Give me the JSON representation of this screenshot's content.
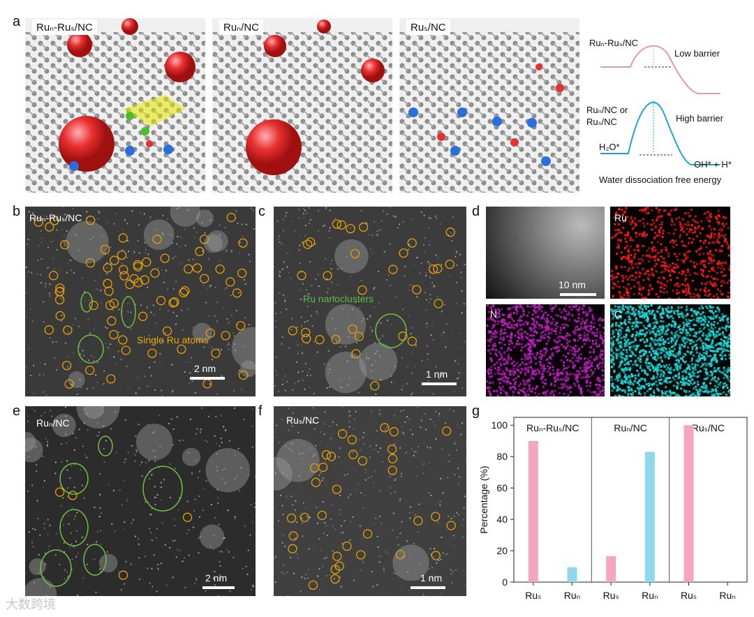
{
  "panels": {
    "a": "a",
    "b": "b",
    "c": "c",
    "d": "d",
    "e": "e",
    "f": "f",
    "g": "g"
  },
  "panel_a": {
    "models": [
      {
        "label": "Ruₙ-Ruₛ/NC"
      },
      {
        "label": "Ruₙ/NC"
      },
      {
        "label": "Ruₛ/NC"
      }
    ],
    "energy": {
      "top_label": "Ruₙ-Ruₛ/NC",
      "top_note": "Low barrier",
      "bottom_label_1": "Ruₙ/NC or",
      "bottom_label_2": "Ruₛ/NC",
      "bottom_note": "High barrier",
      "initial": "H₂O*",
      "final": "OH* + H*",
      "caption": "Water dissociation free energy"
    }
  },
  "panel_b": {
    "label": "Ruₙ-Ruₛ/NC",
    "annotation": "Single Ru atoms",
    "scale": "2 nm"
  },
  "panel_c": {
    "annotation": "Ru nanoclusters",
    "scale": "1 nm"
  },
  "panel_d": {
    "scale": "10 nm",
    "maps": [
      "Ru",
      "N",
      "C"
    ]
  },
  "panel_e": {
    "label": "Ruₙ/NC",
    "scale": "2 nm"
  },
  "panel_f": {
    "label": "Ruₛ/NC",
    "scale": "1 nm"
  },
  "colors": {
    "pink": "#f4a6c0",
    "blue": "#8fd6ee",
    "orange_circle": "#e8a000",
    "green_circle": "#6fbf40",
    "energy_pink": "#e89aa6",
    "energy_blue": "#1aa7d8"
  },
  "chart_data": {
    "type": "bar",
    "ylabel": "Percentage (%)",
    "ylim": [
      0,
      105
    ],
    "yticks": [
      0,
      20,
      40,
      60,
      80,
      100
    ],
    "groups": [
      "Ruₙ-Ruₛ/NC",
      "Ruₙ/NC",
      "Ruₛ/NC"
    ],
    "categories": [
      "Ruₛ",
      "Ruₙ",
      "Ruₛ",
      "Ruₙ",
      "Ruₛ",
      "Ruₙ"
    ],
    "values": [
      90,
      9.5,
      16.5,
      83,
      100,
      0
    ],
    "bar_colors": [
      "#f4a6c0",
      "#8fd6ee",
      "#f4a6c0",
      "#8fd6ee",
      "#f4a6c0",
      "#8fd6ee"
    ]
  },
  "watermark": "大数跨境"
}
